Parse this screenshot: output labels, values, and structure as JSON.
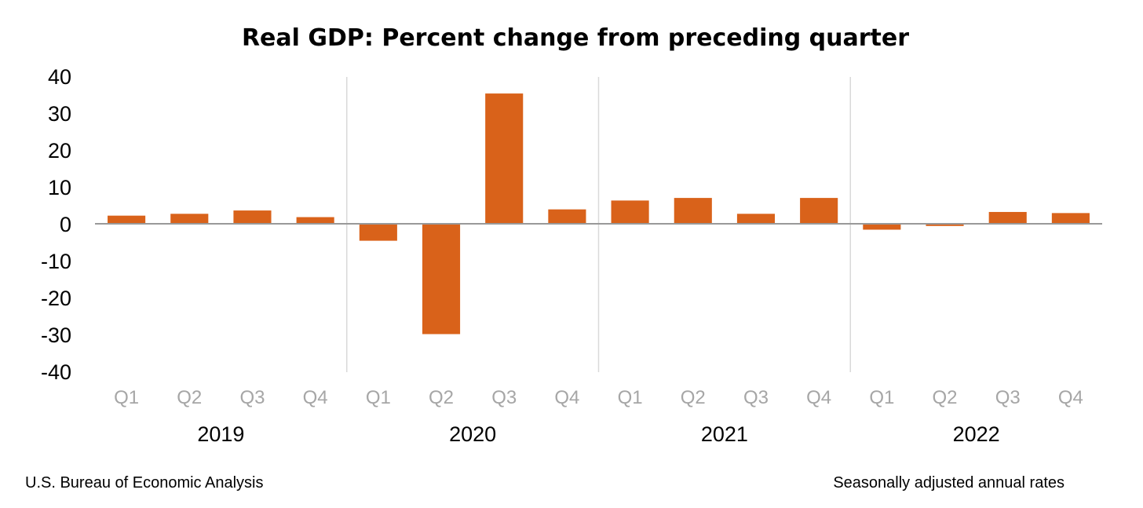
{
  "chart_data": {
    "type": "bar",
    "title": "Real GDP:  Percent change from preceding quarter",
    "source": "U.S. Bureau of Economic Analysis",
    "note": "Seasonally adjusted annual rates",
    "bar_color": "#d9621a",
    "ylim": [
      -40,
      40
    ],
    "yticks": [
      "40",
      "30",
      "20",
      "10",
      "0",
      "-10",
      "-20",
      "-30",
      "-40"
    ],
    "ytick_values": [
      40,
      30,
      20,
      10,
      0,
      -10,
      -20,
      -30,
      -40
    ],
    "years": [
      "2019",
      "2020",
      "2021",
      "2022"
    ],
    "categories": [
      "Q1",
      "Q2",
      "Q3",
      "Q4",
      "Q1",
      "Q2",
      "Q3",
      "Q4",
      "Q1",
      "Q2",
      "Q3",
      "Q4",
      "Q1",
      "Q2",
      "Q3",
      "Q4"
    ],
    "values": [
      2.2,
      2.7,
      3.6,
      1.8,
      -4.6,
      -29.9,
      35.3,
      3.9,
      6.3,
      7.0,
      2.7,
      7.0,
      -1.6,
      -0.6,
      3.2,
      2.9
    ],
    "grid": false
  }
}
